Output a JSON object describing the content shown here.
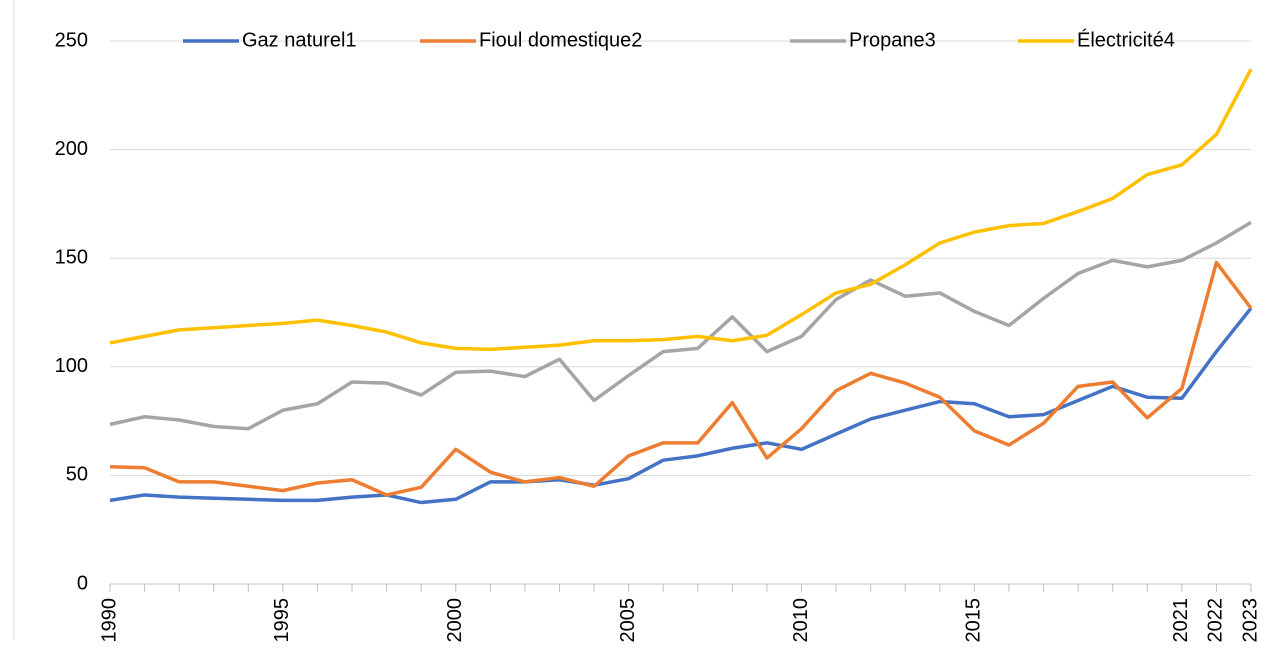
{
  "chart_data": {
    "type": "line",
    "categories": [
      "1990",
      null,
      null,
      null,
      null,
      "1995",
      null,
      null,
      null,
      null,
      "2000",
      null,
      null,
      null,
      null,
      "2005",
      null,
      null,
      null,
      null,
      "2010",
      null,
      null,
      null,
      null,
      "2015",
      null,
      null,
      null,
      null,
      null,
      "2021",
      "2022",
      "2023"
    ],
    "series": [
      {
        "name": "Gaz naturel1",
        "color": "#4472c4",
        "values": [
          38.5,
          41,
          40,
          39.5,
          39,
          38.5,
          38.5,
          40,
          41,
          37.5,
          39,
          47,
          47,
          48,
          45.5,
          48.5,
          57,
          59,
          62.5,
          65,
          62,
          69,
          76,
          80,
          84,
          83,
          77,
          78,
          84.5,
          91,
          86,
          85.5,
          107,
          127
        ]
      },
      {
        "name": "Fioul domestique2",
        "color": "#ed7d31",
        "values": [
          54,
          53.5,
          47,
          47,
          45,
          43,
          46.5,
          48,
          41,
          44.5,
          62,
          51.5,
          47,
          49,
          45,
          59,
          65,
          65,
          83.5,
          58,
          71.5,
          89,
          97,
          92.5,
          86,
          70.5,
          64,
          74,
          91,
          93,
          76.5,
          90,
          148,
          127
        ]
      },
      {
        "name": "Propane3",
        "color": "#a5a5a5",
        "values": [
          73.5,
          77,
          75.5,
          72.5,
          71.5,
          80,
          83,
          93,
          92.5,
          87,
          97.5,
          98,
          95.5,
          103.5,
          84.5,
          96,
          107,
          108.5,
          123,
          107,
          114,
          131,
          140,
          132.5,
          134,
          125.5,
          119,
          131.5,
          143,
          149,
          146,
          149,
          157,
          166.5
        ]
      },
      {
        "name": "Électricité4",
        "color": "#ffc000",
        "values": [
          111,
          114,
          117,
          118,
          119,
          120,
          121.5,
          119,
          116,
          111,
          108.5,
          108,
          109,
          110,
          112,
          112,
          112.5,
          114,
          112,
          114.5,
          124,
          134,
          138,
          147,
          157,
          162,
          165,
          166,
          171.5,
          177.5,
          188.5,
          193,
          207,
          237
        ]
      }
    ],
    "ylim": [
      0,
      250
    ],
    "yticks": [
      0,
      50,
      100,
      150,
      200,
      250
    ],
    "grid": true,
    "legend": "top"
  }
}
